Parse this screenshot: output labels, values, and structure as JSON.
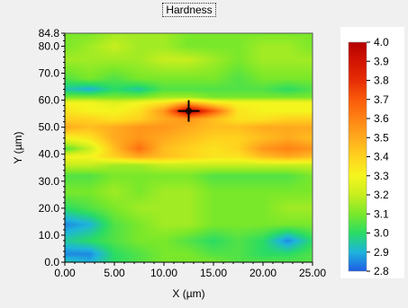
{
  "chart_data": {
    "type": "heatmap",
    "title": "Hardness",
    "xlabel": "X (µm)",
    "ylabel": "Y (µm)",
    "xlim": [
      0,
      25
    ],
    "ylim": [
      0,
      84.8
    ],
    "x_ticks": [
      {
        "value": 0,
        "label": "0.00"
      },
      {
        "value": 5,
        "label": "5.00"
      },
      {
        "value": 10,
        "label": "10.00"
      },
      {
        "value": 15,
        "label": "15.00"
      },
      {
        "value": 20,
        "label": "20.00"
      },
      {
        "value": 25,
        "label": "25.00"
      }
    ],
    "y_ticks": [
      {
        "value": 0,
        "label": "0.0"
      },
      {
        "value": 10,
        "label": "10.0"
      },
      {
        "value": 20,
        "label": "20.0"
      },
      {
        "value": 30,
        "label": "30.0"
      },
      {
        "value": 40,
        "label": "40.0"
      },
      {
        "value": 50,
        "label": "50.0"
      },
      {
        "value": 60,
        "label": "60.0"
      },
      {
        "value": 70,
        "label": "70.0"
      },
      {
        "value": 80,
        "label": "80.0"
      },
      {
        "value": 84.8,
        "label": "84.8"
      }
    ],
    "colorbar": {
      "min": 2.8,
      "max": 4.0,
      "tick_labels": [
        "4.0",
        "3.9",
        "3.8",
        "3.7",
        "3.6",
        "3.5",
        "3.4",
        "3.3",
        "3.2",
        "3.1",
        "3.0",
        "2.9",
        "2.8"
      ],
      "colors": [
        {
          "v": 2.8,
          "c": "#1e5ce6"
        },
        {
          "v": 2.9,
          "c": "#1eb4dc"
        },
        {
          "v": 3.0,
          "c": "#2adc64"
        },
        {
          "v": 3.1,
          "c": "#7ae82a"
        },
        {
          "v": 3.2,
          "c": "#c8ee1e"
        },
        {
          "v": 3.3,
          "c": "#f5f51e"
        },
        {
          "v": 3.4,
          "c": "#ffd21e"
        },
        {
          "v": 3.5,
          "c": "#ffaa1e"
        },
        {
          "v": 3.6,
          "c": "#ff8214"
        },
        {
          "v": 3.7,
          "c": "#fa5a0a"
        },
        {
          "v": 3.8,
          "c": "#e62d05"
        },
        {
          "v": 3.9,
          "c": "#d21402"
        },
        {
          "v": 4.0,
          "c": "#b40000"
        }
      ]
    },
    "grid": false,
    "legend_position": "right",
    "marker": {
      "x": 12.5,
      "y": 56
    },
    "x_nodes": [
      0,
      2.5,
      5,
      7.5,
      10,
      12.5,
      15,
      17.5,
      20,
      22.5,
      25
    ],
    "y_rows": [
      {
        "y": 0,
        "values": [
          2.95,
          2.9,
          3.0,
          3.05,
          3.1,
          3.1,
          3.1,
          3.05,
          3.05,
          3.05,
          3.05
        ]
      },
      {
        "y": 3,
        "values": [
          2.85,
          2.85,
          3.0,
          3.05,
          3.1,
          3.1,
          3.05,
          3.05,
          3.0,
          3.0,
          3.05
        ]
      },
      {
        "y": 8,
        "values": [
          2.95,
          3.0,
          3.05,
          3.1,
          3.1,
          3.05,
          3.0,
          3.05,
          3.0,
          2.85,
          3.0
        ]
      },
      {
        "y": 14,
        "values": [
          2.85,
          2.9,
          3.05,
          3.1,
          3.15,
          3.15,
          3.1,
          3.1,
          3.1,
          3.1,
          3.1
        ]
      },
      {
        "y": 20,
        "values": [
          3.0,
          3.05,
          3.1,
          3.15,
          3.15,
          3.15,
          3.1,
          3.1,
          3.1,
          3.15,
          3.15
        ]
      },
      {
        "y": 26,
        "values": [
          3.1,
          3.1,
          3.15,
          3.1,
          3.15,
          3.15,
          3.1,
          3.1,
          3.1,
          3.1,
          3.1
        ]
      },
      {
        "y": 32,
        "values": [
          3.05,
          3.05,
          3.1,
          3.1,
          3.1,
          3.1,
          3.05,
          3.05,
          3.05,
          3.05,
          3.1
        ]
      },
      {
        "y": 36,
        "values": [
          3.2,
          3.2,
          3.15,
          3.15,
          3.2,
          3.2,
          3.2,
          3.2,
          3.2,
          3.2,
          3.2
        ]
      },
      {
        "y": 39,
        "values": [
          3.3,
          3.3,
          3.4,
          3.5,
          3.45,
          3.4,
          3.35,
          3.35,
          3.45,
          3.5,
          3.45
        ]
      },
      {
        "y": 42,
        "values": [
          3.05,
          3.2,
          3.45,
          3.65,
          3.45,
          3.4,
          3.35,
          3.4,
          3.55,
          3.6,
          3.55
        ]
      },
      {
        "y": 46,
        "values": [
          3.3,
          3.35,
          3.5,
          3.55,
          3.5,
          3.45,
          3.4,
          3.4,
          3.45,
          3.5,
          3.45
        ]
      },
      {
        "y": 50,
        "values": [
          3.5,
          3.45,
          3.5,
          3.55,
          3.55,
          3.5,
          3.45,
          3.45,
          3.5,
          3.5,
          3.5
        ]
      },
      {
        "y": 53,
        "values": [
          3.4,
          3.4,
          3.35,
          3.4,
          3.5,
          3.55,
          3.45,
          3.35,
          3.35,
          3.4,
          3.4
        ]
      },
      {
        "y": 56,
        "values": [
          3.35,
          3.3,
          3.3,
          3.35,
          3.55,
          4.0,
          3.7,
          3.35,
          3.3,
          3.3,
          3.3
        ]
      },
      {
        "y": 59,
        "values": [
          3.3,
          3.3,
          3.25,
          3.3,
          3.35,
          3.5,
          3.35,
          3.3,
          3.3,
          3.3,
          3.3
        ]
      },
      {
        "y": 61,
        "values": [
          3.1,
          3.1,
          3.1,
          3.1,
          3.15,
          3.15,
          3.1,
          3.1,
          3.1,
          3.1,
          3.1
        ]
      },
      {
        "y": 64,
        "values": [
          2.95,
          2.9,
          3.0,
          2.95,
          3.05,
          3.05,
          3.05,
          3.05,
          3.05,
          3.0,
          3.05
        ]
      },
      {
        "y": 68,
        "values": [
          3.05,
          3.1,
          3.05,
          3.1,
          3.1,
          3.1,
          3.1,
          3.05,
          3.1,
          3.1,
          3.1
        ]
      },
      {
        "y": 75,
        "values": [
          3.15,
          3.15,
          3.15,
          3.15,
          3.2,
          3.2,
          3.15,
          3.1,
          3.15,
          3.15,
          3.15
        ]
      },
      {
        "y": 80,
        "values": [
          3.1,
          3.15,
          3.2,
          3.15,
          3.15,
          3.1,
          3.1,
          3.1,
          3.15,
          3.15,
          3.1
        ]
      },
      {
        "y": 84.8,
        "values": [
          3.1,
          3.1,
          3.15,
          3.15,
          3.15,
          3.1,
          3.1,
          3.1,
          3.1,
          3.1,
          3.1
        ]
      }
    ]
  }
}
